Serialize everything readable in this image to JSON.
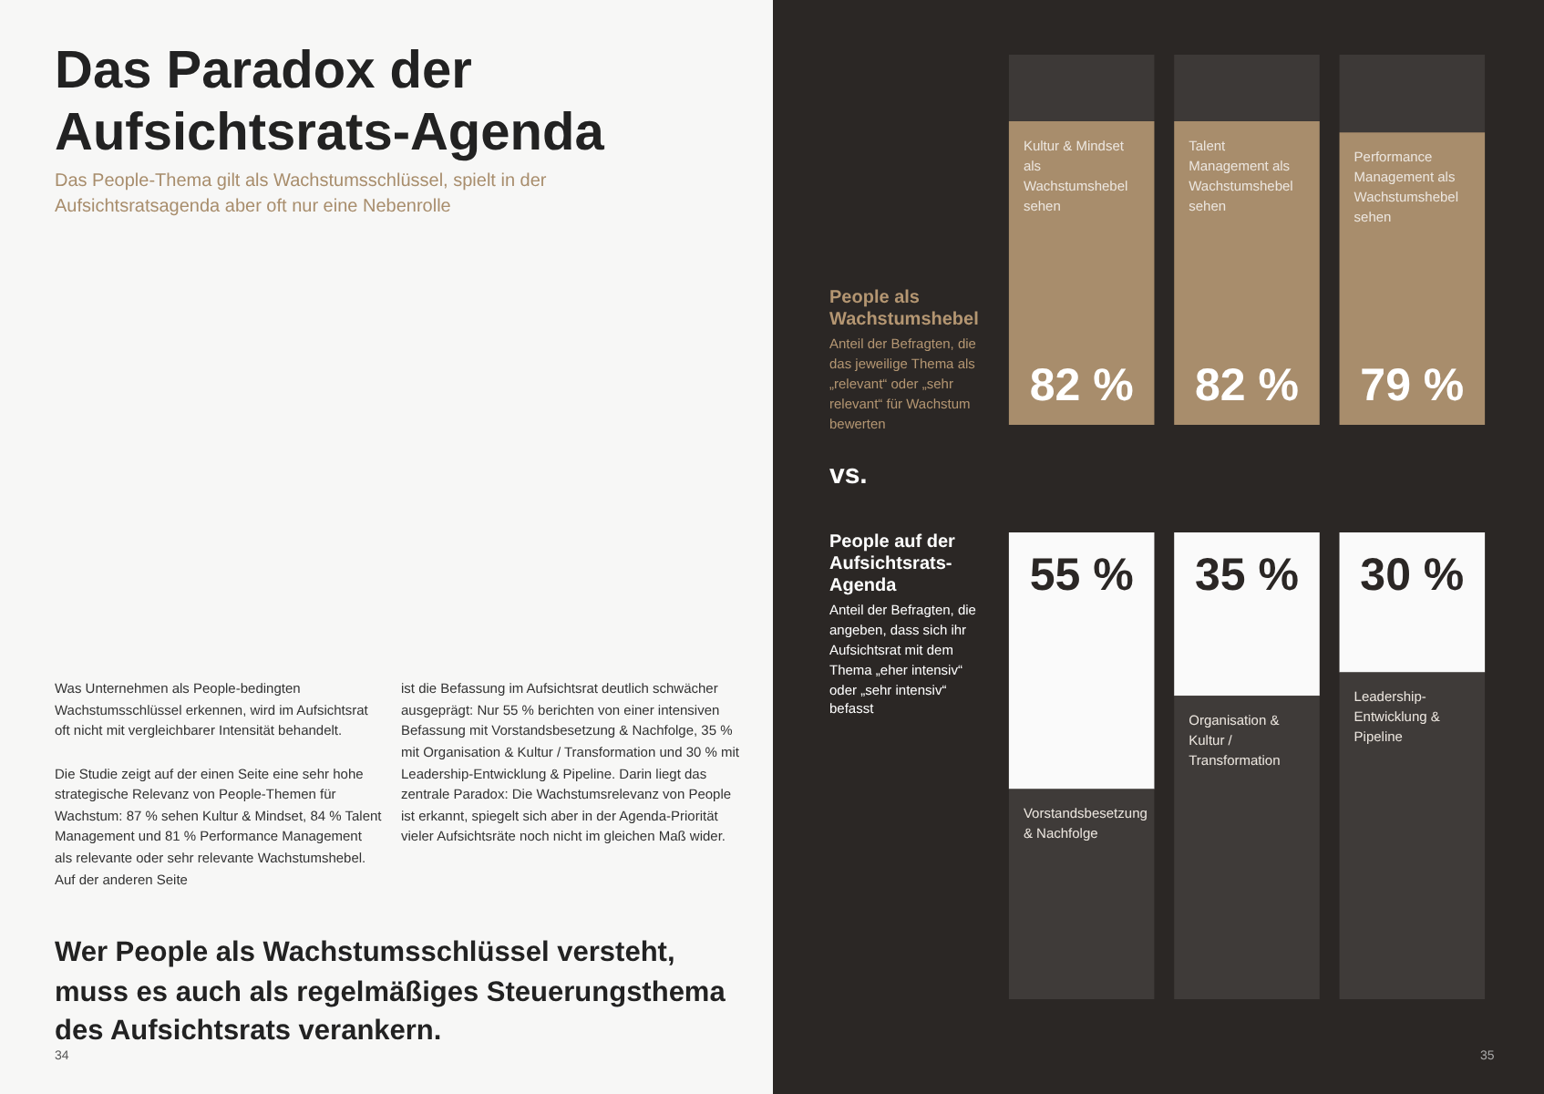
{
  "chart_data": [
    {
      "type": "other",
      "title": "Das Paradox der Aufsichtsrats-Agenda",
      "subtitle": "Das People-Thema gilt als Wachstumsschlüssel, spielt in der Aufsichtsratsagenda aber oft nur eine Nebenrolle",
      "annotations": [
        "Was Unternehmen als People-bedingten Wachstumsschlüssel erkennen, wird im Aufsichtsrat oft nicht mit vergleichbarer Intensität behandelt.\n\nDie Studie zeigt auf der einen Seite eine sehr hohe strategische Relevanz von People-Themen für Wachstum: 87 % sehen Kultur & Mindset, 84 % Talent Management und 81 % Performance Management als relevante oder sehr relevante Wachstumshebel. Auf der anderen Seite",
        "ist die Befassung im Aufsichtsrat deutlich schwächer ausgeprägt: Nur 55 % berichten von einer intensiven Befassung mit Vorstandsbesetzung & Nachfolge, 35 % mit Organisation & Kultur / Transformation und 30 % mit Leadership-Entwicklung & Pipeline. Darin liegt das zentrale Paradox: Die Wachstumsrelevanz von People ist erkannt, spiegelt sich aber in der Agenda-Priorität vieler Aufsichtsräte noch nicht im gleichen Maß wider.",
        "Wer People als Wachstumsschlüssel versteht, muss es auch als regelmäßiges Steuerungsthema des Aufsichtsrats verankern.",
        "vs.",
        "34",
        "35"
      ]
    },
    {
      "type": "bar",
      "title": "People als Wachstumshebel",
      "subtitle": "Anteil der Befragten, die das jeweilige Thema als „relevant“ oder „sehr relevant“ für Wachstum bewerten",
      "categories": [
        "Kultur & Mindset als Wachstumshebel sehen",
        "Talent Management als Wachstumshebel sehen",
        "Performance Management als Wachstumshebel sehen"
      ],
      "stacked": true,
      "ylim": [
        0,
        100
      ],
      "grid": false,
      "legend": false,
      "tick_labels": false,
      "series": [
        {
          "color": "#a88d6c",
          "values": [
            82,
            82,
            79
          ],
          "value_labels": [
            "82 %",
            "82 %",
            "79 %"
          ]
        },
        {
          "color": "#3d3937",
          "values": [
            18,
            18,
            21
          ]
        }
      ]
    },
    {
      "type": "bar",
      "title": "People auf der Aufsichtsrats-Agenda",
      "subtitle": "Anteil der Befragten, die angeben, dass sich ihr Aufsichtsrat mit dem Thema „eher intensiv“ oder „sehr intensiv“ befasst",
      "categories": [
        "Vorstandsbesetzung & Nachfolge",
        "Organisation & Kultur / Transformation",
        "Leadership-Entwicklung & Pipeline"
      ],
      "stacked": true,
      "ylim": [
        0,
        100
      ],
      "grid": false,
      "legend": false,
      "tick_labels": false,
      "series": [
        {
          "color": "#3f3b39",
          "values": [
            45,
            65,
            70
          ]
        },
        {
          "color": "#fafafa",
          "values": [
            55,
            35,
            30
          ],
          "value_labels": [
            "55 %",
            "35 %",
            "30 %"
          ]
        }
      ]
    }
  ]
}
